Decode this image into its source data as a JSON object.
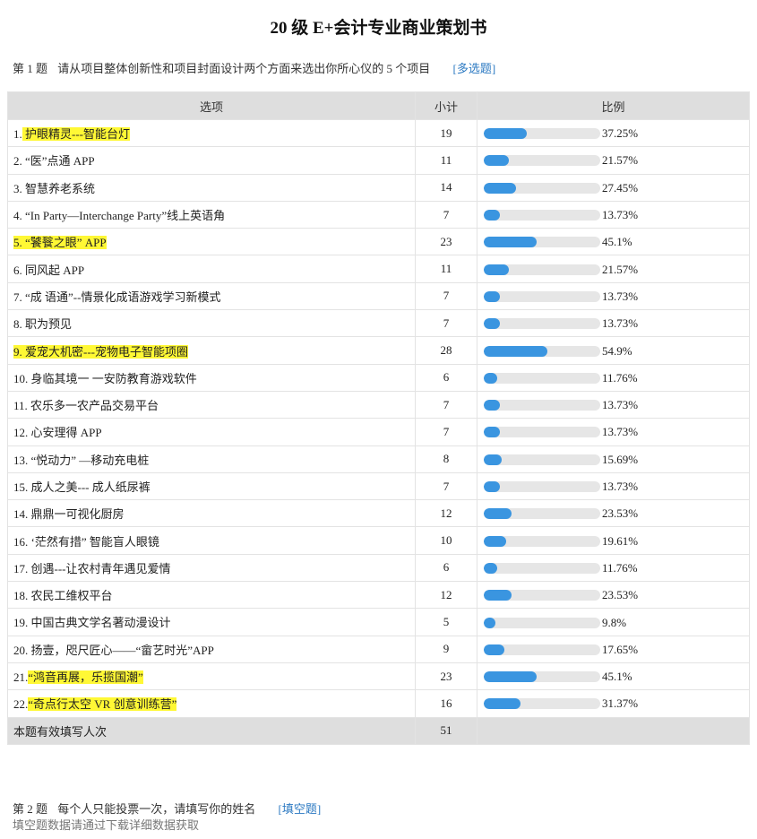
{
  "title": "20 级 E+会计专业商业策划书",
  "question1": {
    "number": "第 1 题",
    "text": "请从项目整体创新性和项目封面设计两个方面来选出你所心仪的 5 个项目",
    "type_tag": "[多选题]"
  },
  "table": {
    "headers": {
      "option": "选项",
      "count": "小计",
      "ratio": "比例"
    },
    "rows": [
      {
        "prefix": "1.",
        "label": " 护眼精灵---智能台灯",
        "highlight": true,
        "count": "19",
        "percent": "37.25%",
        "fraction": 0.3725
      },
      {
        "prefix": "",
        "label": "2. “医”点通 APP",
        "highlight": false,
        "count": "11",
        "percent": "21.57%",
        "fraction": 0.2157
      },
      {
        "prefix": "",
        "label": "3.  智慧养老系统",
        "highlight": false,
        "count": "14",
        "percent": "27.45%",
        "fraction": 0.2745
      },
      {
        "prefix": "",
        "label": "4. “In Party—Interchange Party”线上英语角",
        "highlight": false,
        "count": "7",
        "percent": "13.73%",
        "fraction": 0.1373
      },
      {
        "prefix": "",
        "label": "5. “饕餮之眼” APP",
        "highlight": true,
        "count": "23",
        "percent": "45.1%",
        "fraction": 0.451
      },
      {
        "prefix": "",
        "label": "6. 同风起 APP",
        "highlight": false,
        "count": "11",
        "percent": "21.57%",
        "fraction": 0.2157
      },
      {
        "prefix": "",
        "label": "7. “成 语通”--情景化成语游戏学习新模式",
        "highlight": false,
        "count": "7",
        "percent": "13.73%",
        "fraction": 0.1373
      },
      {
        "prefix": "",
        "label": "8.  职为预见",
        "highlight": false,
        "count": "7",
        "percent": "13.73%",
        "fraction": 0.1373
      },
      {
        "prefix": "",
        "label": "9.  爱宠大机密---宠物电子智能项圈",
        "highlight": true,
        "count": "28",
        "percent": "54.9%",
        "fraction": 0.549
      },
      {
        "prefix": "",
        "label": "10. 身临其境一 一安防教育游戏软件",
        "highlight": false,
        "count": "6",
        "percent": "11.76%",
        "fraction": 0.1176
      },
      {
        "prefix": "",
        "label": "11. 农乐多一农产品交易平台",
        "highlight": false,
        "count": "7",
        "percent": "13.73%",
        "fraction": 0.1373
      },
      {
        "prefix": "",
        "label": "12.  心安理得 APP",
        "highlight": false,
        "count": "7",
        "percent": "13.73%",
        "fraction": 0.1373
      },
      {
        "prefix": "",
        "label": "13. “悦动力” —移动充电桩",
        "highlight": false,
        "count": "8",
        "percent": "15.69%",
        "fraction": 0.1569
      },
      {
        "prefix": "",
        "label": "15.    成人之美--- 成人纸尿裤",
        "highlight": false,
        "count": "7",
        "percent": "13.73%",
        "fraction": 0.1373
      },
      {
        "prefix": "",
        "label": "14. 鼎鼎一可视化厨房",
        "highlight": false,
        "count": "12",
        "percent": "23.53%",
        "fraction": 0.2353
      },
      {
        "prefix": "",
        "label": "16. ‘茫然有措” 智能盲人眼镜",
        "highlight": false,
        "count": "10",
        "percent": "19.61%",
        "fraction": 0.1961
      },
      {
        "prefix": "",
        "label": "17. 创遇---让农村青年遇见爱情",
        "highlight": false,
        "count": "6",
        "percent": "11.76%",
        "fraction": 0.1176
      },
      {
        "prefix": "",
        "label": "18.  农民工维权平台",
        "highlight": false,
        "count": "12",
        "percent": "23.53%",
        "fraction": 0.2353
      },
      {
        "prefix": "",
        "label": "19.  中国古典文学名著动漫设计",
        "highlight": false,
        "count": "5",
        "percent": "9.8%",
        "fraction": 0.098
      },
      {
        "prefix": "",
        "label": "20. 扬壹，咫尺匠心——“畲艺时光”APP",
        "highlight": false,
        "count": "9",
        "percent": "17.65%",
        "fraction": 0.1765
      },
      {
        "prefix": "21.",
        "label": "“鸿音再展，乐揽国潮”",
        "highlight": true,
        "count": "23",
        "percent": "45.1%",
        "fraction": 0.451
      },
      {
        "prefix": "22.",
        "label": "“奇点行太空 VR 创意训练营”",
        "highlight": true,
        "count": "16",
        "percent": "31.37%",
        "fraction": 0.3137
      }
    ],
    "total": {
      "label": "本题有效填写人次",
      "count": "51"
    }
  },
  "question2": {
    "number": "第 2 题",
    "text": "每个人只能投票一次，请填写你的姓名",
    "type_tag": "[填空题]",
    "note": "填空题数据请通过下载详细数据获取"
  },
  "colors": {
    "bar_fill": "#3a95e0",
    "bar_track": "#e6e6e6",
    "highlight": "#fff835",
    "tag": "#2b79c2"
  }
}
